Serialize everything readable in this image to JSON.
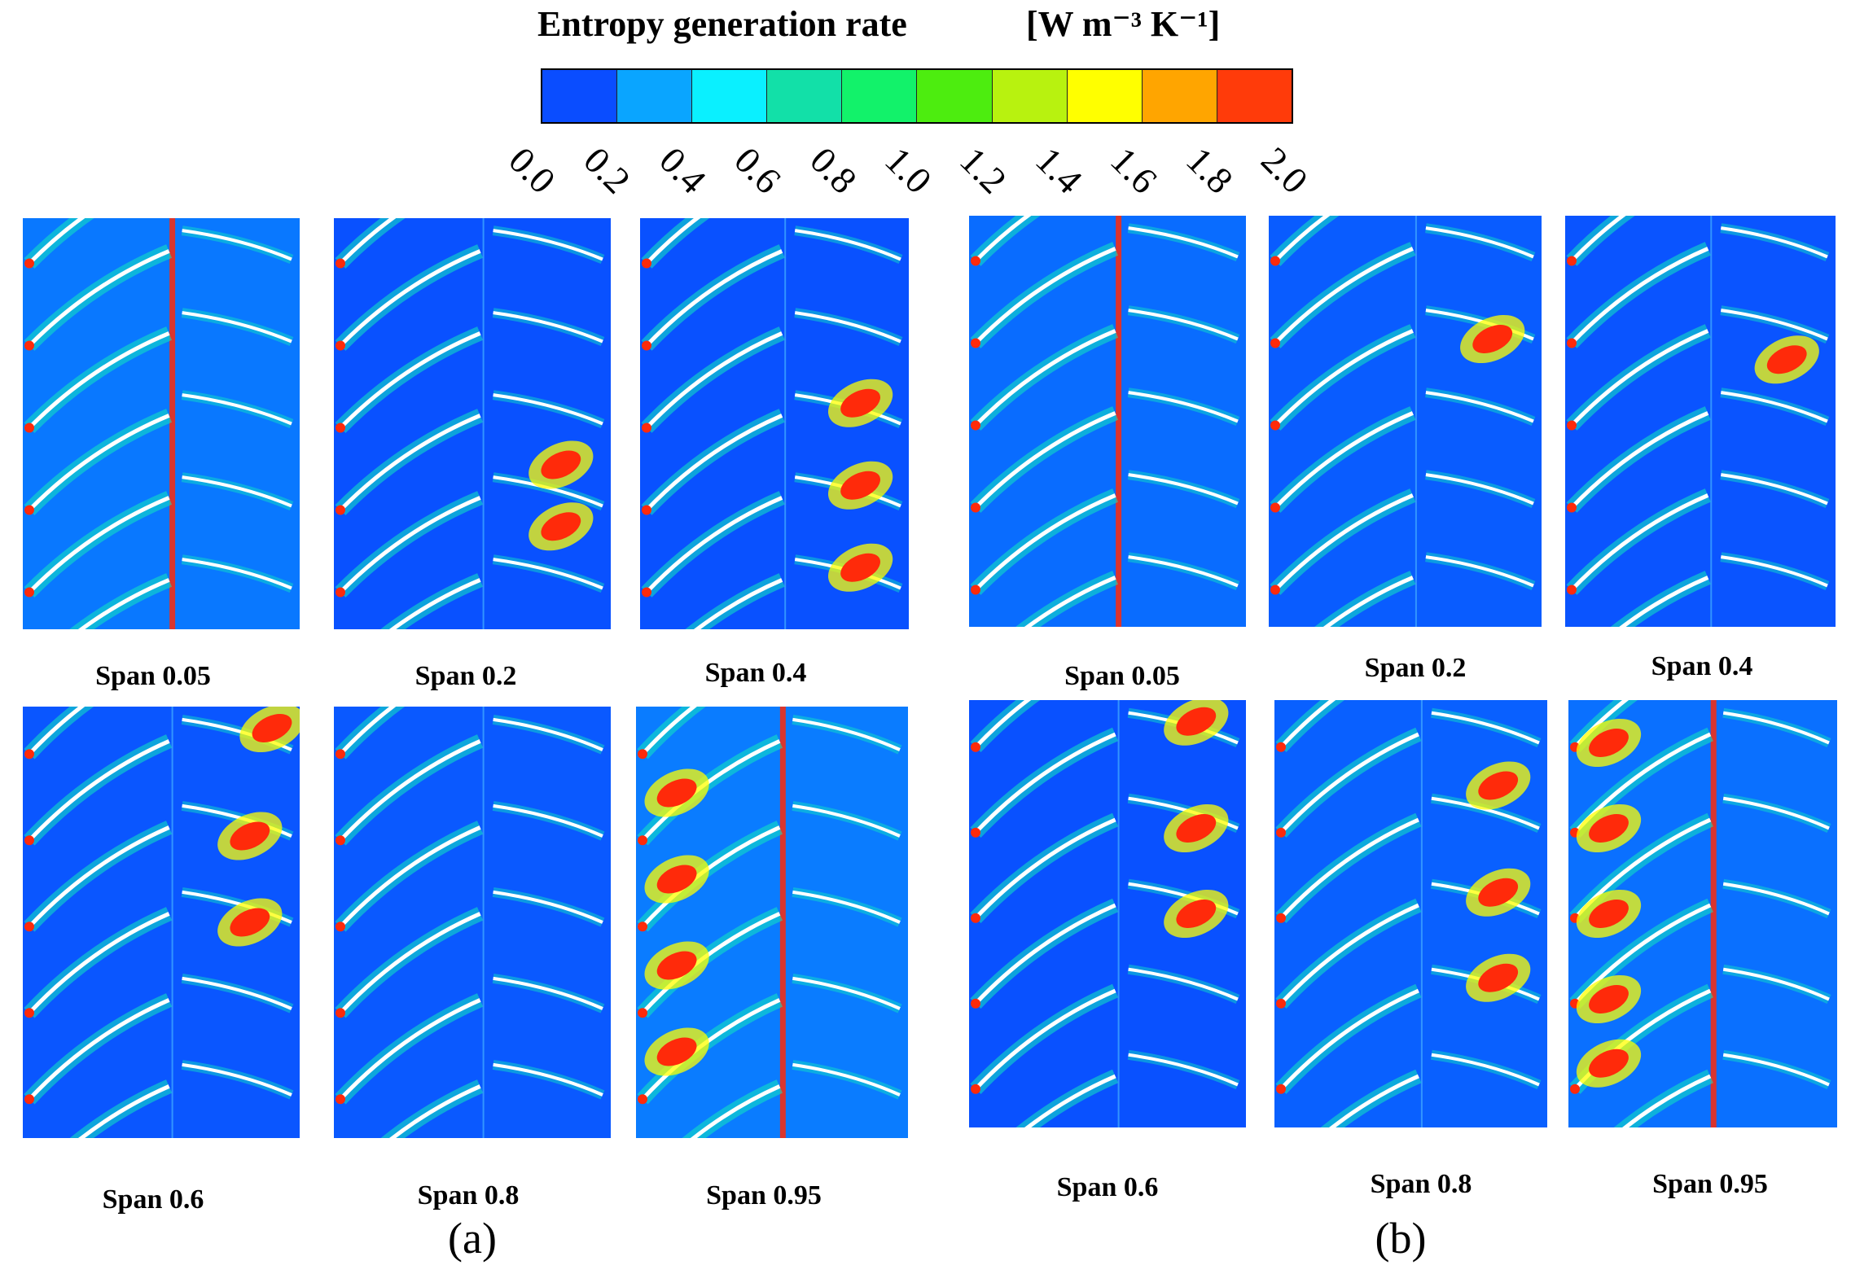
{
  "legend": {
    "title": "Entropy generation rate",
    "unit": "[W m⁻³ K⁻¹]",
    "ticks": [
      "0.0",
      "0.2",
      "0.4",
      "0.6",
      "0.8",
      "1.0",
      "1.2",
      "1.4",
      "1.6",
      "1.8",
      "2.0"
    ],
    "colors": [
      "#0a4dff",
      "#0aa5ff",
      "#0af0ff",
      "#12e0a8",
      "#12f26a",
      "#4ded0f",
      "#b8f20f",
      "#ffff00",
      "#ffa500",
      "#ff3b0a"
    ]
  },
  "groups": [
    {
      "label": "(a)",
      "panels": [
        {
          "caption": "Span 0.05",
          "intensity": 0.55,
          "hot": []
        },
        {
          "caption": "Span 0.2",
          "intensity": 0.05,
          "hot": [
            0.6,
            0.75
          ]
        },
        {
          "caption": "Span 0.4",
          "intensity": 0.05,
          "hot": [
            0.45,
            0.65,
            0.85
          ]
        },
        {
          "caption": "Span 0.6",
          "intensity": 0.12,
          "hot": [
            0.05,
            0.3,
            0.5
          ]
        },
        {
          "caption": "Span 0.8",
          "intensity": 0.15,
          "hot": []
        },
        {
          "caption": "Span 0.95",
          "intensity": 0.6,
          "hot": [
            0.2,
            0.4,
            0.6,
            0.8
          ]
        }
      ]
    },
    {
      "label": "(b)",
      "panels": [
        {
          "caption": "Span 0.05",
          "intensity": 0.4,
          "hot": []
        },
        {
          "caption": "Span 0.2",
          "intensity": 0.2,
          "hot": [
            0.3
          ]
        },
        {
          "caption": "Span 0.4",
          "intensity": 0.1,
          "hot": [
            0.35
          ]
        },
        {
          "caption": "Span 0.6",
          "intensity": 0.05,
          "hot": [
            0.05,
            0.3,
            0.5
          ]
        },
        {
          "caption": "Span 0.8",
          "intensity": 0.25,
          "hot": [
            0.2,
            0.45,
            0.65
          ]
        },
        {
          "caption": "Span 0.95",
          "intensity": 0.45,
          "hot": [
            0.1,
            0.3,
            0.5,
            0.7,
            0.85
          ]
        }
      ]
    }
  ]
}
